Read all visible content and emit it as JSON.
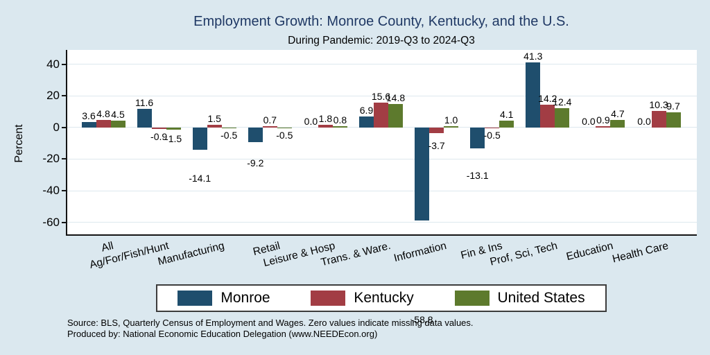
{
  "chart_data": {
    "type": "bar",
    "title": "Employment Growth: Monroe County, Kentucky, and the U.S.",
    "subtitle": "During Pandemic: 2019-Q3 to 2024-Q3",
    "ylabel": "Percent",
    "categories": [
      "All",
      "Ag/For/Fish/Hunt",
      "Manufacturing",
      "Retail",
      "Leisure & Hosp",
      "Trans. & Ware.",
      "Information",
      "Fin & Ins",
      "Prof, Sci, Tech",
      "Education",
      "Health Care"
    ],
    "series": [
      {
        "name": "Monroe",
        "color": "#1f4e6d",
        "values": [
          3.6,
          11.6,
          -14.1,
          -9.2,
          0.0,
          6.9,
          -58.8,
          -13.1,
          41.3,
          0.0,
          0.0
        ]
      },
      {
        "name": "Kentucky",
        "color": "#a23d44",
        "values": [
          4.8,
          -0.9,
          1.5,
          0.7,
          1.8,
          15.6,
          -3.7,
          -0.5,
          14.2,
          0.9,
          10.3
        ]
      },
      {
        "name": "United States",
        "color": "#5d7a2d",
        "values": [
          4.5,
          -1.5,
          -0.5,
          -0.5,
          0.8,
          14.8,
          1.0,
          4.1,
          12.4,
          4.7,
          9.7
        ]
      }
    ],
    "yticks": [
      40,
      20,
      0,
      -20,
      -40,
      -60
    ],
    "ylim": [
      -68,
      49
    ],
    "grid": true,
    "legend_position": "bottom",
    "value_labels": "one-decimal"
  },
  "footer": {
    "source": "Source: BLS, Quarterly Census of Employment and Wages. Zero values indicate missing data values.",
    "produced_by": "Produced by: National Economic Education Delegation (www.NEEDEcon.org)"
  },
  "colors": {
    "background": "#dbe8ef",
    "plot_background": "#ffffff",
    "title_text": "#1f3864",
    "gridline": "#dde8ee",
    "axis": "#141414"
  }
}
